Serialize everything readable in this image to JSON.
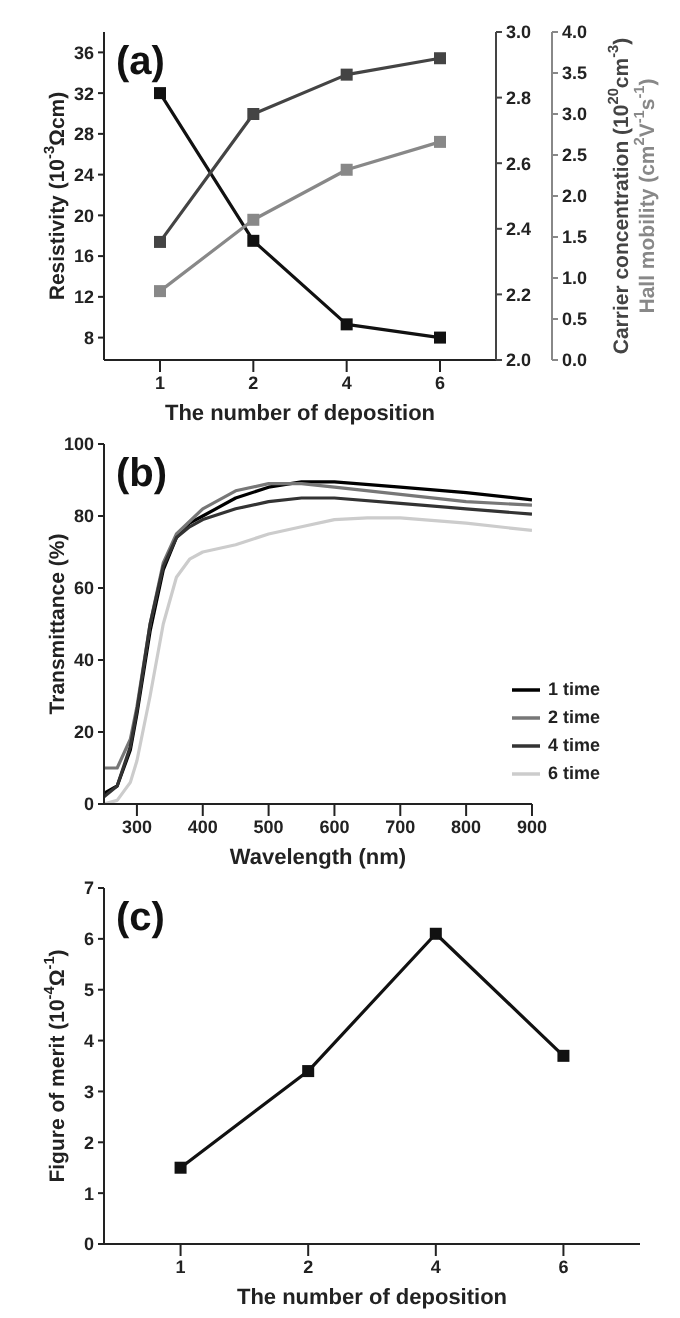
{
  "chart_data": [
    {
      "type": "line",
      "annotations": [
        "(a)"
      ],
      "xlabel": "The number of deposition",
      "ylabel": "Resistivity (10$^{-3}$Ωcm)",
      "y2label": "Carrier concentration (10$^{20}$cm$^{-3}$)",
      "y3label": "Hall mobility (cm$^{2}$V$^{-1}$s$^{-1}$)",
      "categories": [
        "1",
        "2",
        "4",
        "6"
      ],
      "marker": "square",
      "ylim": [
        5.8,
        38
      ],
      "yticks": [
        8,
        12,
        16,
        20,
        24,
        28,
        32,
        36
      ],
      "y2lim": [
        2.0,
        3.0
      ],
      "y2ticks": [
        {
          "value": 2.0,
          "label": "2.0"
        },
        {
          "value": 2.2,
          "label": "2.2"
        },
        {
          "value": 2.4,
          "label": "2.4"
        },
        {
          "value": 2.6,
          "label": "2.6"
        },
        {
          "value": 2.8,
          "label": "2.8"
        },
        {
          "value": 3.0,
          "label": "3.0"
        }
      ],
      "y3lim": [
        0,
        4
      ],
      "y3ticks": [
        {
          "value": 0,
          "label": "0.0"
        },
        {
          "value": 0.5,
          "label": "0.5"
        },
        {
          "value": 1,
          "label": "1.0"
        },
        {
          "value": 1.5,
          "label": "1.5"
        },
        {
          "value": 2,
          "label": "2.0"
        },
        {
          "value": 2.5,
          "label": "2.5"
        },
        {
          "value": 3,
          "label": "3.0"
        },
        {
          "value": 3.5,
          "label": "3.5"
        },
        {
          "value": 4,
          "label": "4.0"
        }
      ],
      "series": [
        {
          "color": "#111111",
          "values": [
            32.0,
            17.5,
            9.3,
            8.0
          ]
        },
        {
          "color": "#444444",
          "axis": "y2",
          "values": [
            2.36,
            2.75,
            2.87,
            2.92
          ]
        },
        {
          "color": "#888888",
          "axis": "y3",
          "values": [
            0.84,
            1.71,
            2.32,
            2.66
          ]
        }
      ]
    },
    {
      "type": "line",
      "annotations": [
        "(b)"
      ],
      "xlabel": "Wavelength (nm)",
      "ylabel": "Transmittance (%)",
      "marker": "none",
      "legend": "bottom right",
      "xlim": [
        250,
        900
      ],
      "xticks": [
        300,
        400,
        500,
        600,
        700,
        800,
        900
      ],
      "ylim": [
        0,
        100
      ],
      "yticks": [
        0,
        20,
        40,
        60,
        80,
        100
      ],
      "series": [
        {
          "name": "1 time",
          "color": "#000000",
          "x": [
            250,
            270,
            290,
            300,
            320,
            340,
            360,
            380,
            400,
            450,
            500,
            550,
            600,
            700,
            800,
            900
          ],
          "values": [
            3,
            5,
            15,
            25,
            48,
            65,
            74,
            78,
            80,
            85,
            88,
            89.5,
            89.5,
            88,
            86.5,
            84.5
          ]
        },
        {
          "name": "2 time",
          "color": "#777777",
          "x": [
            250,
            270,
            290,
            300,
            320,
            340,
            360,
            400,
            450,
            500,
            550,
            600,
            700,
            800,
            900
          ],
          "values": [
            10,
            10,
            18,
            27,
            50,
            67,
            75,
            82,
            87,
            89,
            89,
            88,
            86,
            84,
            83
          ]
        },
        {
          "name": "4 time",
          "color": "#333333",
          "x": [
            250,
            270,
            290,
            300,
            320,
            340,
            360,
            380,
            400,
            450,
            500,
            550,
            600,
            700,
            800,
            900
          ],
          "values": [
            2,
            5,
            16,
            26,
            50,
            66,
            74,
            77,
            79,
            82,
            84,
            85,
            85,
            83.5,
            82,
            80.5
          ]
        },
        {
          "name": "6 time",
          "color": "#cccccc",
          "x": [
            250,
            270,
            290,
            300,
            320,
            340,
            360,
            380,
            400,
            450,
            500,
            550,
            600,
            650,
            700,
            800,
            900
          ],
          "values": [
            0,
            1,
            6,
            12,
            30,
            50,
            63,
            68,
            70,
            72,
            75,
            77,
            79,
            79.5,
            79.5,
            78,
            76
          ]
        }
      ]
    },
    {
      "type": "line",
      "annotations": [
        "(c)"
      ],
      "xlabel": "The number of deposition",
      "ylabel": "Figure of merit (10$^{-4}$Ω$^{-1}$)",
      "categories": [
        "1",
        "2",
        "4",
        "6"
      ],
      "marker": "square",
      "ylim": [
        0,
        7
      ],
      "yticks": [
        0,
        1,
        2,
        3,
        4,
        5,
        6,
        7
      ],
      "series": [
        {
          "color": "#111111",
          "values": [
            1.5,
            3.4,
            6.1,
            3.7
          ]
        }
      ]
    }
  ]
}
